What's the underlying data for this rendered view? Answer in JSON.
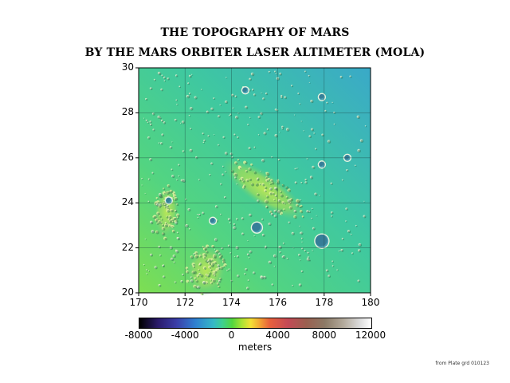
{
  "title": {
    "line1": "THE TOPOGRAPHY OF MARS",
    "line2": "BY THE MARS ORBITER LASER ALTIMETER (MOLA)"
  },
  "map": {
    "lat_ticks": [
      "30",
      "28",
      "26",
      "24",
      "22",
      "20"
    ],
    "lon_ticks": [
      "170",
      "172",
      "174",
      "176",
      "178",
      "180"
    ],
    "lat_range": [
      20,
      30
    ],
    "lon_range": [
      170,
      180
    ],
    "features": [
      {
        "type": "ridge",
        "lon": 175.4,
        "lat": 24.6
      },
      {
        "type": "ridge",
        "lon": 172.9,
        "lat": 21.0
      },
      {
        "type": "ridge",
        "lon": 171.2,
        "lat": 23.6
      },
      {
        "type": "crater",
        "lon": 177.9,
        "lat": 22.3
      },
      {
        "type": "crater",
        "lon": 175.1,
        "lat": 22.9
      },
      {
        "type": "crater",
        "lon": 177.9,
        "lat": 25.7
      },
      {
        "type": "crater",
        "lon": 173.2,
        "lat": 23.2
      },
      {
        "type": "crater",
        "lon": 171.3,
        "lat": 24.1
      },
      {
        "type": "crater",
        "lon": 179.0,
        "lat": 26.0
      },
      {
        "type": "crater",
        "lon": 177.9,
        "lat": 28.7
      },
      {
        "type": "crater",
        "lon": 174.6,
        "lat": 29.0
      }
    ]
  },
  "colorbar": {
    "ticks": [
      "-8000",
      "-4000",
      "0",
      "4000",
      "8000",
      "12000"
    ],
    "unit": "meters",
    "range": [
      -8000,
      12000
    ]
  },
  "credit": "from Plate grd 010123",
  "colors": {
    "lowland_teal": "#3fc0a6",
    "plain_green": "#52d27e",
    "highland_yellowgreen": "#9ee04a",
    "ridge_highlight": "#d8f09a"
  }
}
